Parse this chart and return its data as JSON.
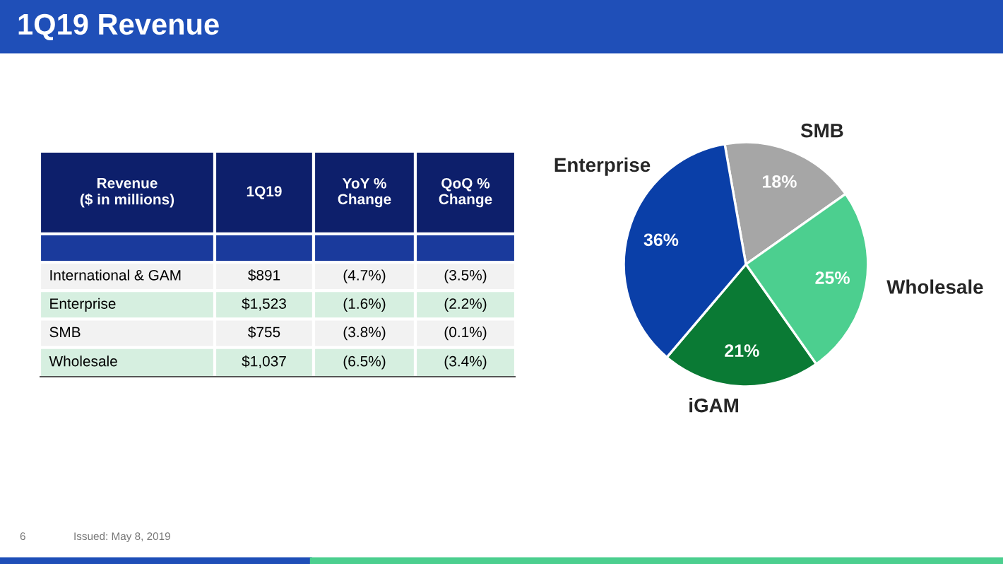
{
  "chart_data": [
    {
      "type": "other",
      "title": "1Q19 Revenue",
      "annotations": [
        "Revenue\n($ in millions)",
        "1Q19",
        "YoY %\nChange",
        "QoQ %\nChange",
        "International & GAM",
        "$891",
        "(4.7%)",
        "(3.5%)",
        "Enterprise",
        "$1,523",
        "(1.6%)",
        "(2.2%)",
        "SMB",
        "$755",
        "(3.8%)",
        "(0.1%)",
        "Wholesale",
        "$1,037",
        "(6.5%)",
        "(3.4%)"
      ]
    },
    {
      "type": "pie",
      "categories": [
        "SMB",
        "Wholesale",
        "iGAM",
        "Enterprise"
      ],
      "values": [
        18,
        25,
        21,
        36
      ],
      "value_labels": [
        "18%",
        "25%",
        "21%",
        "36%"
      ],
      "colors": [
        "#a6a6a6",
        "#4ccf8f",
        "#0a7a34",
        "#0a3fa8"
      ],
      "annotations": [
        "Issued: May 8, 2019",
        "6"
      ]
    }
  ]
}
